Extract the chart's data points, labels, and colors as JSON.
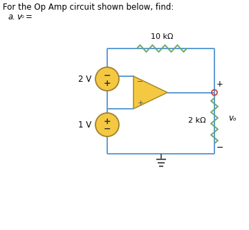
{
  "title_line1": "For the Op Amp circuit shown below, find:",
  "title_line2": "a.  vₒ =",
  "bg_color": "#ffffff",
  "wire_color": "#5b9bd5",
  "resistor_color": "#6aaa6a",
  "opamp_fill": "#f5c842",
  "source_fill": "#f5c842",
  "source_edge": "#a08030",
  "text_color": "#000000",
  "res_10k_label": "10 kΩ",
  "res_2k_label": "2 kΩ",
  "v1_label": "2 V",
  "v2_label": "1 V",
  "vo_label": "vₒ"
}
